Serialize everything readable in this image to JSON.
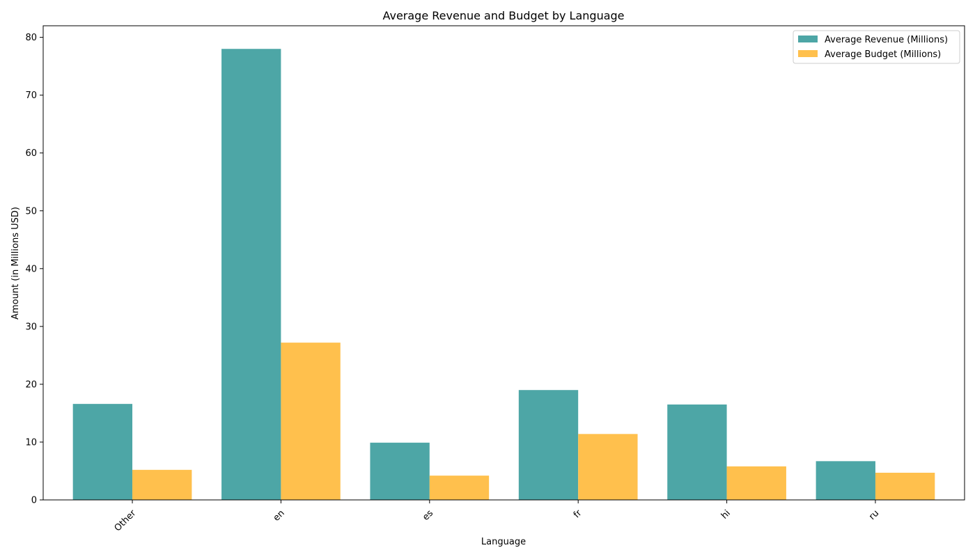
{
  "chart_data": {
    "type": "bar",
    "title": "Average Revenue and Budget by Language",
    "xlabel": "Language",
    "ylabel": "Amount (in Millions USD)",
    "categories": [
      "Other",
      "en",
      "es",
      "fr",
      "hi",
      "ru"
    ],
    "series": [
      {
        "name": "Average Revenue (Millions)",
        "color": "#4da6a6",
        "values": [
          16.6,
          78.0,
          9.9,
          19.0,
          16.5,
          6.7
        ]
      },
      {
        "name": "Average Budget (Millions)",
        "color": "#ffc04d",
        "values": [
          5.2,
          27.2,
          4.2,
          11.4,
          5.8,
          4.7
        ]
      }
    ],
    "ylim": [
      0,
      82
    ],
    "yticks": [
      0,
      10,
      20,
      30,
      40,
      50,
      60,
      70,
      80
    ],
    "grid": false,
    "legend_position": "top-right"
  }
}
